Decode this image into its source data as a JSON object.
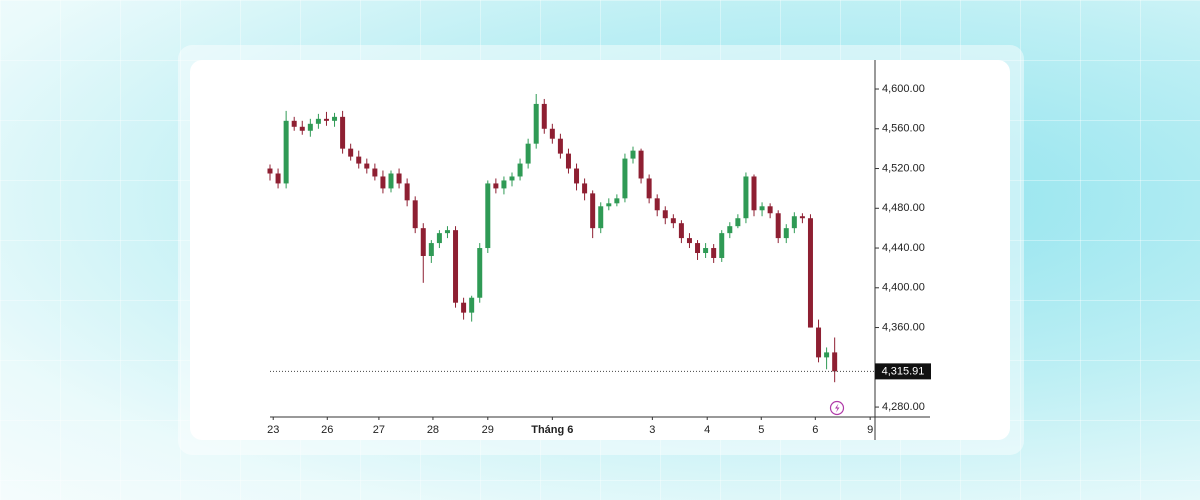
{
  "chart_data": {
    "type": "candlestick",
    "x": [
      0,
      1,
      2,
      3,
      4,
      5,
      6,
      7,
      8,
      9,
      10,
      11,
      12,
      13,
      14,
      15,
      16,
      17,
      18,
      19,
      20,
      21,
      22,
      23,
      24,
      25,
      26,
      27,
      28,
      29,
      30,
      31,
      32,
      33,
      34,
      35,
      36,
      37,
      38,
      39,
      40,
      41,
      42,
      43,
      44,
      45,
      46,
      47,
      48,
      49,
      50,
      51,
      52,
      53,
      54,
      55,
      56,
      57,
      58,
      59,
      60,
      61,
      62,
      63,
      64,
      65,
      66,
      67,
      68,
      69,
      70
    ],
    "open": [
      4520,
      4515,
      4505,
      4568,
      4562,
      4558,
      4565,
      4570,
      4568,
      4572,
      4540,
      4532,
      4525,
      4520,
      4512,
      4500,
      4515,
      4505,
      4488,
      4460,
      4432,
      4445,
      4455,
      4458,
      4385,
      4375,
      4390,
      4440,
      4505,
      4500,
      4508,
      4512,
      4525,
      4545,
      4585,
      4560,
      4550,
      4535,
      4520,
      4505,
      4495,
      4460,
      4482,
      4485,
      4490,
      4530,
      4538,
      4510,
      4490,
      4478,
      4470,
      4465,
      4450,
      4445,
      4435,
      4440,
      4430,
      4455,
      4462,
      4470,
      4512,
      4478,
      4482,
      4475,
      4450,
      4460,
      4472,
      4470,
      4360,
      4330,
      4335
    ],
    "high": [
      4524,
      4520,
      4578,
      4572,
      4568,
      4570,
      4575,
      4577,
      4576,
      4578,
      4545,
      4538,
      4530,
      4525,
      4518,
      4518,
      4520,
      4510,
      4492,
      4465,
      4448,
      4458,
      4462,
      4462,
      4390,
      4392,
      4445,
      4508,
      4510,
      4512,
      4516,
      4530,
      4550,
      4595,
      4590,
      4565,
      4555,
      4540,
      4525,
      4510,
      4498,
      4486,
      4490,
      4494,
      4535,
      4542,
      4540,
      4514,
      4494,
      4482,
      4474,
      4468,
      4455,
      4448,
      4445,
      4444,
      4458,
      4466,
      4474,
      4516,
      4514,
      4486,
      4485,
      4478,
      4464,
      4476,
      4475,
      4474,
      4368,
      4340,
      4350
    ],
    "low": [
      4508,
      4500,
      4500,
      4558,
      4554,
      4552,
      4560,
      4563,
      4562,
      4535,
      4528,
      4520,
      4515,
      4508,
      4495,
      4496,
      4500,
      4482,
      4455,
      4405,
      4425,
      4440,
      4450,
      4380,
      4368,
      4366,
      4385,
      4435,
      4495,
      4494,
      4502,
      4508,
      4520,
      4540,
      4555,
      4545,
      4530,
      4515,
      4498,
      4488,
      4450,
      4455,
      4478,
      4482,
      4486,
      4525,
      4505,
      4485,
      4472,
      4464,
      4460,
      4445,
      4440,
      4428,
      4430,
      4425,
      4426,
      4450,
      4460,
      4465,
      4472,
      4472,
      4470,
      4445,
      4445,
      4455,
      4465,
      4360,
      4325,
      4318,
      4305
    ],
    "close": [
      4515,
      4505,
      4568,
      4562,
      4558,
      4565,
      4570,
      4568,
      4572,
      4540,
      4532,
      4525,
      4520,
      4512,
      4500,
      4515,
      4505,
      4488,
      4460,
      4432,
      4445,
      4455,
      4458,
      4385,
      4375,
      4390,
      4440,
      4505,
      4500,
      4508,
      4512,
      4525,
      4545,
      4585,
      4560,
      4550,
      4535,
      4520,
      4505,
      4495,
      4460,
      4482,
      4485,
      4490,
      4530,
      4538,
      4510,
      4490,
      4478,
      4470,
      4465,
      4450,
      4445,
      4435,
      4440,
      4430,
      4455,
      4462,
      4470,
      4512,
      4478,
      4482,
      4475,
      4450,
      4460,
      4472,
      4470,
      4360,
      4330,
      4335,
      4315.91
    ],
    "up_color": "#2f9a55",
    "down_color": "#8e1f32",
    "xlim": [
      0,
      75
    ],
    "xticks": [
      {
        "value": 0.4,
        "label": "23"
      },
      {
        "value": 7.1,
        "label": "26"
      },
      {
        "value": 13.5,
        "label": "27"
      },
      {
        "value": 20.2,
        "label": "28"
      },
      {
        "value": 27,
        "label": "29"
      },
      {
        "value": 35,
        "label": "Tháng 6"
      },
      {
        "value": 47.4,
        "label": "3"
      },
      {
        "value": 54.2,
        "label": "4"
      },
      {
        "value": 60.9,
        "label": "5"
      },
      {
        "value": 67.6,
        "label": "6"
      },
      {
        "value": 74.4,
        "label": "9"
      }
    ],
    "ylim": [
      4270,
      4630
    ],
    "yticks": [
      {
        "value": 4600,
        "label": "4,600.00"
      },
      {
        "value": 4560,
        "label": "4,560.00"
      },
      {
        "value": 4520,
        "label": "4,520.00"
      },
      {
        "value": 4480,
        "label": "4,480.00"
      },
      {
        "value": 4440,
        "label": "4,440.00"
      },
      {
        "value": 4400,
        "label": "4,400.00"
      },
      {
        "value": 4360,
        "label": "4,360.00"
      },
      {
        "value": 4280,
        "label": "4,280.00"
      }
    ],
    "last_price": {
      "value": 4315.91,
      "label": "4,315.91"
    }
  }
}
